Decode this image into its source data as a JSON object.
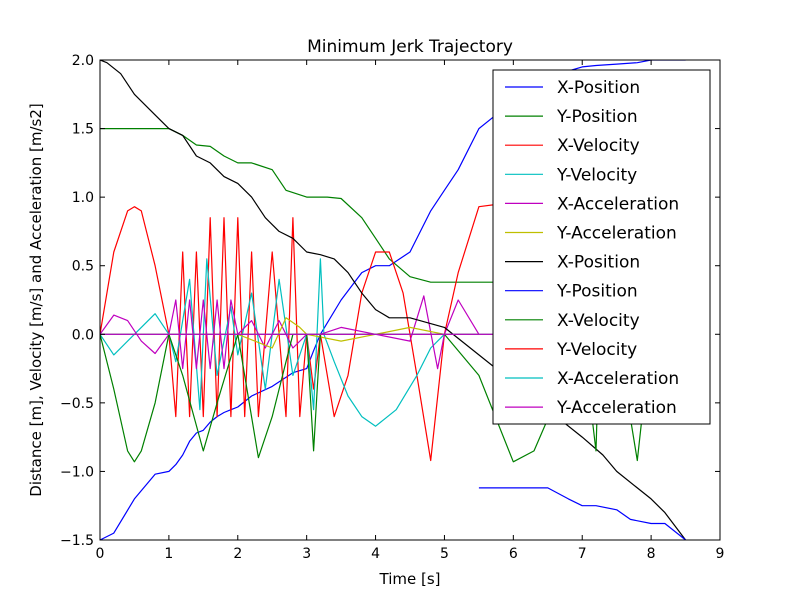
{
  "chart_data": {
    "type": "line",
    "title": "Minimum Jerk Trajectory",
    "xlabel": "Time [s]",
    "ylabel": "Distance [m], Velocity [m/s] and Acceleration [m/s2]",
    "xlim": [
      0,
      9
    ],
    "ylim": [
      -1.5,
      2.0
    ],
    "xticks": [
      0,
      1,
      2,
      3,
      4,
      5,
      6,
      7,
      8,
      9
    ],
    "xtick_labels": [
      "0",
      "1",
      "2",
      "3",
      "4",
      "5",
      "6",
      "7",
      "8",
      "9"
    ],
    "yticks": [
      -1.5,
      -1.0,
      -0.5,
      0.0,
      0.5,
      1.0,
      1.5,
      2.0
    ],
    "ytick_labels": [
      "−1.5",
      "−1.0",
      "−0.5",
      "0.0",
      "0.5",
      "1.0",
      "1.5",
      "2.0"
    ],
    "grid": false,
    "legend_position": "top-right",
    "series": [
      {
        "name": "X-Position",
        "color": "#0000ff",
        "x": [
          0,
          0.2,
          0.5,
          0.8,
          1.0,
          1.1,
          1.2,
          1.3,
          1.4,
          1.5,
          1.6,
          1.7,
          1.8,
          1.9,
          2.0,
          2.2,
          2.5,
          2.8,
          3.0,
          3.1,
          3.2,
          3.5,
          3.8,
          4.0,
          4.2,
          4.5,
          4.8,
          5.0,
          5.2,
          5.5,
          6.0,
          6.5,
          6.8,
          7.0,
          7.2,
          7.5,
          7.8,
          8.0,
          8.3,
          8.5
        ],
        "values": [
          -1.5,
          -1.45,
          -1.2,
          -1.02,
          -1.0,
          -0.95,
          -0.88,
          -0.78,
          -0.72,
          -0.7,
          -0.64,
          -0.6,
          -0.57,
          -0.55,
          -0.53,
          -0.45,
          -0.38,
          -0.28,
          -0.25,
          -0.12,
          0.0,
          0.25,
          0.45,
          0.5,
          0.5,
          0.6,
          0.9,
          1.05,
          1.2,
          1.5,
          1.7,
          1.85,
          1.92,
          1.95,
          1.96,
          1.97,
          1.98,
          2.0,
          2.0,
          2.0
        ]
      },
      {
        "name": "Y-Position",
        "color": "#008000",
        "x": [
          0,
          0.5,
          1.0,
          1.2,
          1.4,
          1.6,
          1.8,
          2.0,
          2.2,
          2.5,
          2.7,
          3.0,
          3.3,
          3.5,
          3.8,
          4.0,
          4.2,
          4.5,
          4.8,
          5.0,
          5.5,
          6.0,
          6.5,
          7.0,
          7.5,
          8.0,
          8.5
        ],
        "values": [
          1.5,
          1.5,
          1.5,
          1.45,
          1.38,
          1.37,
          1.3,
          1.25,
          1.25,
          1.2,
          1.05,
          1.0,
          1.0,
          0.99,
          0.85,
          0.7,
          0.55,
          0.42,
          0.38,
          0.38,
          0.38,
          0.38,
          0.38,
          0.38,
          0.38,
          0.38,
          0.38
        ]
      },
      {
        "name": "X-Velocity",
        "color": "#ff0000",
        "x": [
          0,
          0.2,
          0.4,
          0.5,
          0.6,
          0.8,
          1.0,
          1.1,
          1.2,
          1.3,
          1.4,
          1.5,
          1.6,
          1.7,
          1.8,
          1.9,
          2.0,
          2.1,
          2.2,
          2.3,
          2.5,
          2.7,
          2.8,
          2.9,
          3.0,
          3.1,
          3.2,
          3.4,
          3.6,
          3.8,
          4.0,
          4.2,
          4.4,
          4.6,
          4.8,
          5.0,
          5.2,
          5.5,
          5.8,
          6.0
        ],
        "values": [
          0.0,
          0.6,
          0.9,
          0.93,
          0.9,
          0.5,
          0.0,
          -0.6,
          0.6,
          -0.6,
          0.6,
          -0.6,
          0.85,
          -0.6,
          0.85,
          -0.6,
          0.85,
          -0.6,
          0.6,
          -0.6,
          0.6,
          -0.6,
          0.85,
          -0.6,
          0.0,
          -0.4,
          0.0,
          -0.6,
          -0.3,
          0.3,
          0.6,
          0.6,
          0.3,
          -0.3,
          -0.92,
          0.0,
          0.45,
          0.93,
          0.95,
          0.9
        ]
      },
      {
        "name": "Y-Velocity",
        "color": "#00bfbf",
        "x": [
          0,
          0.2,
          0.5,
          0.8,
          1.0,
          1.1,
          1.3,
          1.45,
          1.55,
          1.7,
          1.9,
          2.0,
          2.2,
          2.4,
          2.6,
          2.8,
          3.0,
          3.1,
          3.2,
          3.25,
          3.4,
          3.6,
          3.8,
          4.0,
          4.3,
          4.6,
          4.8,
          5.0,
          5.2,
          5.5
        ],
        "values": [
          0.0,
          -0.15,
          0.0,
          0.15,
          0.0,
          -0.2,
          0.4,
          -0.55,
          0.55,
          -0.3,
          0.2,
          -0.15,
          0.3,
          -0.4,
          0.4,
          -0.3,
          0.0,
          -0.55,
          0.55,
          0.0,
          -0.2,
          -0.45,
          -0.6,
          -0.67,
          -0.55,
          -0.3,
          -0.1,
          0.0,
          0.0,
          0.0
        ]
      },
      {
        "name": "X-Acceleration",
        "color": "#bf00bf",
        "x": [
          0,
          0.2,
          0.4,
          0.6,
          0.8,
          1.0,
          1.1,
          1.2,
          1.3,
          1.4,
          1.5,
          1.6,
          1.7,
          1.8,
          1.9,
          2.0,
          2.2,
          2.4,
          2.6,
          2.8,
          3.0,
          3.2,
          3.5,
          4.0,
          4.5,
          4.7,
          4.9,
          5.0,
          5.2,
          5.5
        ],
        "values": [
          0.0,
          0.14,
          0.1,
          -0.05,
          -0.14,
          0.0,
          0.25,
          -0.25,
          0.25,
          -0.25,
          0.25,
          -0.25,
          0.25,
          -0.25,
          0.25,
          0.0,
          0.1,
          -0.1,
          0.1,
          -0.1,
          0.0,
          0.0,
          0.05,
          0.0,
          -0.05,
          0.28,
          -0.25,
          0.0,
          0.25,
          0.0
        ]
      },
      {
        "name": "Y-Acceleration",
        "color": "#bfbf00",
        "x": [
          0,
          1,
          2,
          2.5,
          2.7,
          2.9,
          3.0,
          3.5,
          4.0,
          4.5,
          5.0,
          5.5
        ],
        "values": [
          0.0,
          0.0,
          0.0,
          -0.1,
          0.12,
          0.05,
          0.0,
          -0.05,
          0.0,
          0.05,
          0.0,
          0.0
        ]
      },
      {
        "name": "X-Position",
        "color": "#000000",
        "x": [
          0,
          0.1,
          0.3,
          0.5,
          0.8,
          1.0,
          1.2,
          1.4,
          1.6,
          1.8,
          2.0,
          2.2,
          2.4,
          2.6,
          2.8,
          3.0,
          3.2,
          3.4,
          3.6,
          3.8,
          4.0,
          4.2,
          4.5,
          5.0,
          5.5,
          6.0,
          6.3,
          6.5,
          7.0,
          7.3,
          7.5,
          7.8,
          8.0,
          8.2,
          8.5
        ],
        "values": [
          2.0,
          1.98,
          1.9,
          1.75,
          1.6,
          1.5,
          1.45,
          1.3,
          1.25,
          1.15,
          1.1,
          1.0,
          0.85,
          0.75,
          0.7,
          0.6,
          0.58,
          0.55,
          0.45,
          0.3,
          0.18,
          0.12,
          0.12,
          0.05,
          -0.15,
          -0.35,
          -0.45,
          -0.55,
          -0.75,
          -0.88,
          -1.0,
          -1.12,
          -1.2,
          -1.3,
          -1.5
        ]
      },
      {
        "name": "Y-Position",
        "color": "#0000ff",
        "x": [
          5.5,
          6.0,
          6.5,
          6.8,
          7.0,
          7.2,
          7.5,
          7.7,
          8.0,
          8.2,
          8.5
        ],
        "values": [
          -1.12,
          -1.12,
          -1.12,
          -1.2,
          -1.25,
          -1.25,
          -1.28,
          -1.35,
          -1.38,
          -1.38,
          -1.5
        ]
      },
      {
        "name": "X-Velocity",
        "color": "#008000",
        "x": [
          0,
          0.2,
          0.4,
          0.5,
          0.6,
          0.8,
          1.0,
          1.2,
          1.5,
          1.7,
          2.0,
          2.3,
          2.5,
          2.8,
          3.0,
          3.1,
          3.2,
          3.5,
          4.0,
          4.5,
          5.0,
          5.5,
          6.0,
          6.3,
          6.6,
          7.0,
          7.2,
          7.25,
          7.5,
          7.8,
          8.0
        ],
        "values": [
          0.0,
          -0.4,
          -0.85,
          -0.93,
          -0.85,
          -0.5,
          0.0,
          -0.3,
          -0.85,
          -0.5,
          0.0,
          -0.9,
          -0.6,
          0.0,
          0.0,
          -0.85,
          0.0,
          0.0,
          0.0,
          0.0,
          0.0,
          -0.3,
          -0.93,
          -0.85,
          -0.5,
          0.0,
          -0.85,
          0.0,
          0.0,
          -0.92,
          0.0
        ]
      },
      {
        "name": "Y-Velocity",
        "color": "#ff0000",
        "x": [
          0,
          1,
          2,
          3,
          4,
          5,
          5.5,
          6.0,
          6.5
        ],
        "values": [
          0.0,
          0.0,
          0.0,
          0.0,
          0.0,
          0.0,
          0.0,
          0.0,
          0.0
        ]
      },
      {
        "name": "X-Acceleration",
        "color": "#00bfbf",
        "x": [
          0,
          1,
          2,
          3,
          4,
          5,
          6
        ],
        "values": [
          0.0,
          0.0,
          0.0,
          0.0,
          0.0,
          0.0,
          0.0
        ]
      },
      {
        "name": "Y-Acceleration",
        "color": "#bf00bf",
        "x": [
          0,
          1,
          2,
          3,
          4,
          5,
          6,
          7
        ],
        "values": [
          0.0,
          0.0,
          0.0,
          0.0,
          0.0,
          0.0,
          0.0,
          0.0
        ]
      }
    ]
  }
}
